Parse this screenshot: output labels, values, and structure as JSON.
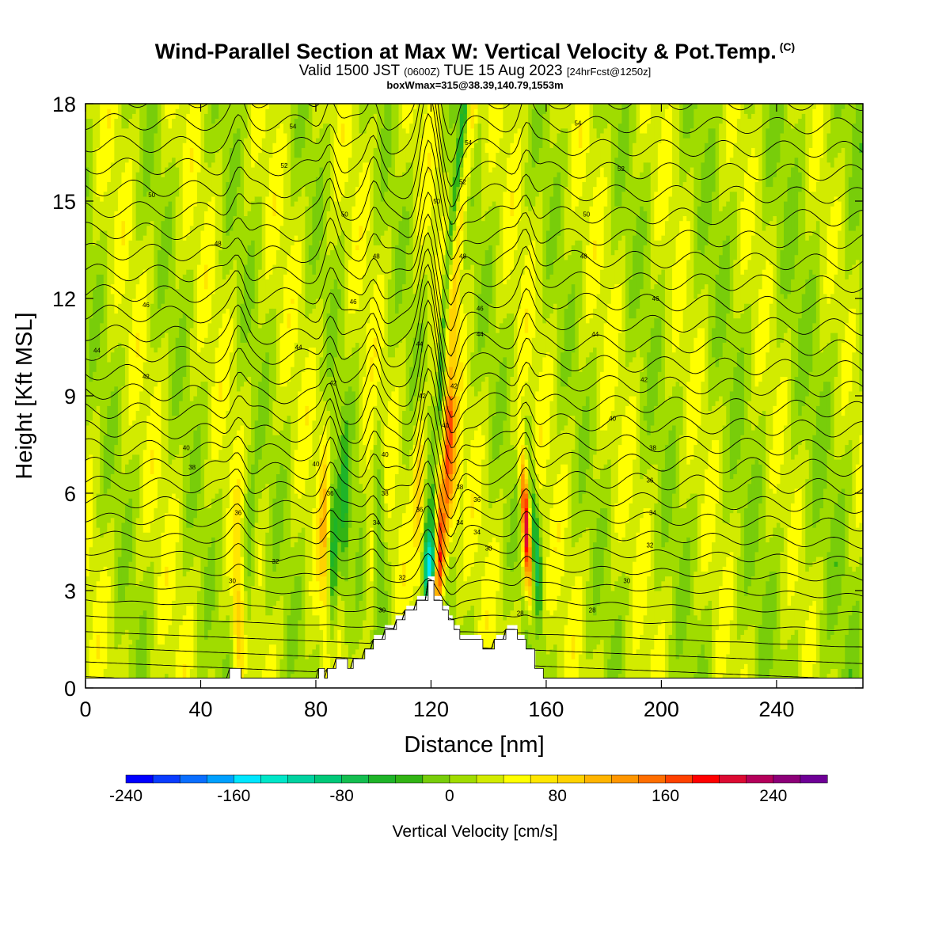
{
  "header": {
    "title": "Wind-Parallel Section at Max W: Vertical Velocity & Pot.Temp.",
    "copyright": "(C)",
    "valid_prefix": "Valid 1500 JST",
    "valid_utc": "(0600Z)",
    "valid_date": "TUE 15 Aug 2023",
    "forecast": "[24hrFcst@1250z]",
    "info": "boxWmax=315@38.39,140.79,1553m"
  },
  "chart_data": {
    "type": "heatmap",
    "xlabel": "Distance [nm]",
    "ylabel": "Height [Kft MSL]",
    "xlim": [
      0,
      270
    ],
    "ylim": [
      0,
      18
    ],
    "x_ticks": [
      0,
      40,
      80,
      120,
      160,
      200,
      240
    ],
    "y_ticks": [
      0,
      3,
      6,
      9,
      12,
      15,
      18
    ],
    "colorbar": {
      "title": "Vertical Velocity [cm/s]",
      "range": [
        -240,
        280
      ],
      "step": 20,
      "tick_values": [
        -240,
        -160,
        -80,
        0,
        80,
        160,
        240
      ],
      "colors": [
        "#0000ff",
        "#0a3cff",
        "#0a6eff",
        "#00a0ff",
        "#00e6ff",
        "#00e6c8",
        "#00d2a0",
        "#00c878",
        "#14be50",
        "#1eb428",
        "#32b414",
        "#78cd0a",
        "#a0dc00",
        "#d2eb00",
        "#ffff00",
        "#ffe600",
        "#ffd200",
        "#ffb400",
        "#ff9600",
        "#ff6e00",
        "#ff4100",
        "#ff0000",
        "#dc0a32",
        "#b4005a",
        "#8c0078",
        "#6e0096"
      ]
    },
    "terrain": [
      [
        0,
        0.3
      ],
      [
        50,
        0.3
      ],
      [
        50,
        0.6
      ],
      [
        54,
        0.6
      ],
      [
        54,
        0.3
      ],
      [
        81,
        0.3
      ],
      [
        81,
        0.6
      ],
      [
        83,
        0.6
      ],
      [
        83,
        0.3
      ],
      [
        84,
        0.3
      ],
      [
        84,
        0.6
      ],
      [
        87,
        0.6
      ],
      [
        87,
        0.9
      ],
      [
        91,
        0.9
      ],
      [
        91,
        0.6
      ],
      [
        93,
        0.6
      ],
      [
        93,
        0.9
      ],
      [
        97,
        0.9
      ],
      [
        97,
        1.2
      ],
      [
        100,
        1.2
      ],
      [
        100,
        1.5
      ],
      [
        104,
        1.5
      ],
      [
        104,
        1.8
      ],
      [
        108,
        1.8
      ],
      [
        108,
        2.1
      ],
      [
        111,
        2.1
      ],
      [
        111,
        2.4
      ],
      [
        115,
        2.4
      ],
      [
        115,
        2.7
      ],
      [
        119,
        2.7
      ],
      [
        119,
        3.3
      ],
      [
        121,
        3.3
      ],
      [
        121,
        2.7
      ],
      [
        124,
        2.7
      ],
      [
        124,
        2.4
      ],
      [
        126,
        2.4
      ],
      [
        126,
        2.1
      ],
      [
        128,
        2.1
      ],
      [
        128,
        1.8
      ],
      [
        130,
        1.8
      ],
      [
        130,
        1.5
      ],
      [
        138,
        1.5
      ],
      [
        138,
        1.2
      ],
      [
        142,
        1.2
      ],
      [
        142,
        1.5
      ],
      [
        146,
        1.5
      ],
      [
        146,
        1.8
      ],
      [
        150,
        1.8
      ],
      [
        150,
        1.5
      ],
      [
        153,
        1.5
      ],
      [
        153,
        1.2
      ],
      [
        156,
        1.2
      ],
      [
        156,
        0.6
      ],
      [
        159,
        0.6
      ],
      [
        159,
        0.3
      ],
      [
        270,
        0.3
      ]
    ],
    "theta_labels": [
      {
        "x": 72,
        "y": 17.3,
        "v": "54"
      },
      {
        "x": 171,
        "y": 17.4,
        "v": "54"
      },
      {
        "x": 133,
        "y": 16.8,
        "v": "54"
      },
      {
        "x": 69,
        "y": 16.1,
        "v": "52"
      },
      {
        "x": 186,
        "y": 16.0,
        "v": "52"
      },
      {
        "x": 131,
        "y": 15.6,
        "v": "52"
      },
      {
        "x": 23,
        "y": 15.2,
        "v": "50"
      },
      {
        "x": 90,
        "y": 14.6,
        "v": "50"
      },
      {
        "x": 174,
        "y": 14.6,
        "v": "50"
      },
      {
        "x": 122,
        "y": 15.0,
        "v": "50"
      },
      {
        "x": 46,
        "y": 13.7,
        "v": "48"
      },
      {
        "x": 101,
        "y": 13.3,
        "v": "48"
      },
      {
        "x": 173,
        "y": 13.3,
        "v": "48"
      },
      {
        "x": 131,
        "y": 13.3,
        "v": "48"
      },
      {
        "x": 21,
        "y": 11.8,
        "v": "46"
      },
      {
        "x": 93,
        "y": 11.9,
        "v": "46"
      },
      {
        "x": 198,
        "y": 12.0,
        "v": "46"
      },
      {
        "x": 137,
        "y": 11.7,
        "v": "46"
      },
      {
        "x": 4,
        "y": 10.4,
        "v": "44"
      },
      {
        "x": 74,
        "y": 10.5,
        "v": "44"
      },
      {
        "x": 177,
        "y": 10.9,
        "v": "44"
      },
      {
        "x": 116,
        "y": 10.6,
        "v": "44"
      },
      {
        "x": 137,
        "y": 10.9,
        "v": "44"
      },
      {
        "x": 21,
        "y": 9.6,
        "v": "42"
      },
      {
        "x": 86,
        "y": 9.4,
        "v": "42"
      },
      {
        "x": 194,
        "y": 9.5,
        "v": "42"
      },
      {
        "x": 128,
        "y": 9.3,
        "v": "42"
      },
      {
        "x": 117,
        "y": 9.0,
        "v": "42"
      },
      {
        "x": 35,
        "y": 7.4,
        "v": "40"
      },
      {
        "x": 80,
        "y": 6.9,
        "v": "40"
      },
      {
        "x": 104,
        "y": 7.2,
        "v": "40"
      },
      {
        "x": 183,
        "y": 8.3,
        "v": "40"
      },
      {
        "x": 125,
        "y": 8.1,
        "v": "40"
      },
      {
        "x": 37,
        "y": 6.8,
        "v": "38"
      },
      {
        "x": 104,
        "y": 6.0,
        "v": "38"
      },
      {
        "x": 197,
        "y": 7.4,
        "v": "38"
      },
      {
        "x": 130,
        "y": 6.2,
        "v": "38"
      },
      {
        "x": 85,
        "y": 6.0,
        "v": "36"
      },
      {
        "x": 53,
        "y": 5.4,
        "v": "36"
      },
      {
        "x": 196,
        "y": 6.4,
        "v": "36"
      },
      {
        "x": 116,
        "y": 5.5,
        "v": "36"
      },
      {
        "x": 136,
        "y": 5.8,
        "v": "36"
      },
      {
        "x": 101,
        "y": 5.1,
        "v": "34"
      },
      {
        "x": 197,
        "y": 5.4,
        "v": "34"
      },
      {
        "x": 130,
        "y": 5.1,
        "v": "34"
      },
      {
        "x": 136,
        "y": 4.8,
        "v": "34"
      },
      {
        "x": 66,
        "y": 3.9,
        "v": "32"
      },
      {
        "x": 110,
        "y": 3.4,
        "v": "32"
      },
      {
        "x": 196,
        "y": 4.4,
        "v": "32"
      },
      {
        "x": 51,
        "y": 3.3,
        "v": "30"
      },
      {
        "x": 103,
        "y": 2.4,
        "v": "30"
      },
      {
        "x": 188,
        "y": 3.3,
        "v": "30"
      },
      {
        "x": 140,
        "y": 4.3,
        "v": "30"
      },
      {
        "x": 151,
        "y": 2.3,
        "v": "28"
      },
      {
        "x": 176,
        "y": 2.4,
        "v": "28"
      }
    ]
  }
}
